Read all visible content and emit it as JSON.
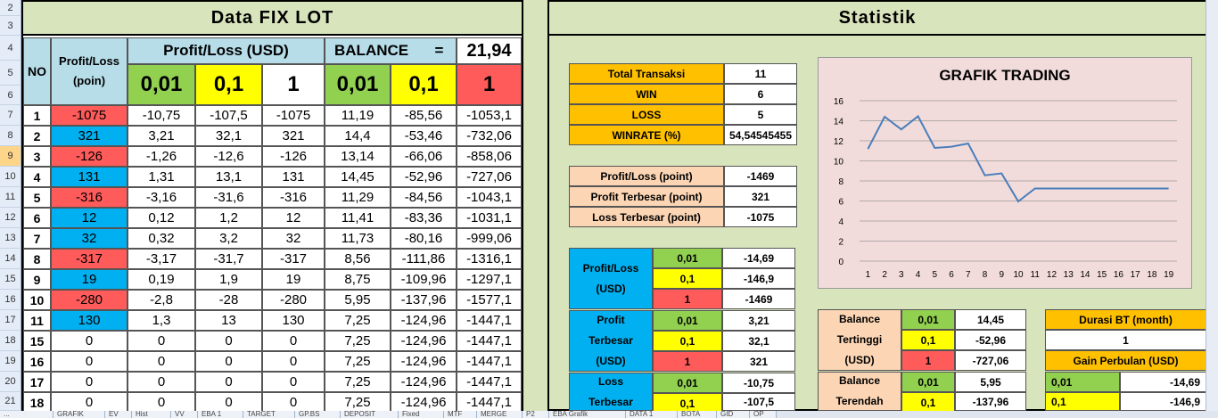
{
  "row_numbers": [
    "2",
    "3",
    "4",
    "5",
    "6",
    "7",
    "8",
    "9",
    "10",
    "11",
    "12",
    "13",
    "14",
    "15",
    "16",
    "17",
    "18",
    "19",
    "20",
    "21"
  ],
  "fix_lot": {
    "title": "Data FIX LOT",
    "no_label": "NO",
    "pl_poin_label": "Profit/Loss (poin)",
    "pl_usd_label": "Profit/Loss (USD)",
    "balance_label": "BALANCE",
    "equals": "=",
    "balance_value": "21,94",
    "lots": [
      "0,01",
      "0,1",
      "1",
      "0,01",
      "0,1",
      "1"
    ],
    "rows": [
      {
        "no": "1",
        "poin": "-1075",
        "p1": "-10,75",
        "p2": "-107,5",
        "p3": "-1075",
        "b1": "11,19",
        "b2": "-85,56",
        "b3": "-1053,1",
        "neg": true
      },
      {
        "no": "2",
        "poin": "321",
        "p1": "3,21",
        "p2": "32,1",
        "p3": "321",
        "b1": "14,4",
        "b2": "-53,46",
        "b3": "-732,06",
        "neg": false
      },
      {
        "no": "3",
        "poin": "-126",
        "p1": "-1,26",
        "p2": "-12,6",
        "p3": "-126",
        "b1": "13,14",
        "b2": "-66,06",
        "b3": "-858,06",
        "neg": true
      },
      {
        "no": "4",
        "poin": "131",
        "p1": "1,31",
        "p2": "13,1",
        "p3": "131",
        "b1": "14,45",
        "b2": "-52,96",
        "b3": "-727,06",
        "neg": false
      },
      {
        "no": "5",
        "poin": "-316",
        "p1": "-3,16",
        "p2": "-31,6",
        "p3": "-316",
        "b1": "11,29",
        "b2": "-84,56",
        "b3": "-1043,1",
        "neg": true
      },
      {
        "no": "6",
        "poin": "12",
        "p1": "0,12",
        "p2": "1,2",
        "p3": "12",
        "b1": "11,41",
        "b2": "-83,36",
        "b3": "-1031,1",
        "neg": false
      },
      {
        "no": "7",
        "poin": "32",
        "p1": "0,32",
        "p2": "3,2",
        "p3": "32",
        "b1": "11,73",
        "b2": "-80,16",
        "b3": "-999,06",
        "neg": false
      },
      {
        "no": "8",
        "poin": "-317",
        "p1": "-3,17",
        "p2": "-31,7",
        "p3": "-317",
        "b1": "8,56",
        "b2": "-111,86",
        "b3": "-1316,1",
        "neg": true
      },
      {
        "no": "9",
        "poin": "19",
        "p1": "0,19",
        "p2": "1,9",
        "p3": "19",
        "b1": "8,75",
        "b2": "-109,96",
        "b3": "-1297,1",
        "neg": false
      },
      {
        "no": "10",
        "poin": "-280",
        "p1": "-2,8",
        "p2": "-28",
        "p3": "-280",
        "b1": "5,95",
        "b2": "-137,96",
        "b3": "-1577,1",
        "neg": true
      },
      {
        "no": "11",
        "poin": "130",
        "p1": "1,3",
        "p2": "13",
        "p3": "130",
        "b1": "7,25",
        "b2": "-124,96",
        "b3": "-1447,1",
        "neg": false
      },
      {
        "no": "15",
        "poin": "0",
        "p1": "0",
        "p2": "0",
        "p3": "0",
        "b1": "7,25",
        "b2": "-124,96",
        "b3": "-1447,1",
        "neg": null
      },
      {
        "no": "16",
        "poin": "0",
        "p1": "0",
        "p2": "0",
        "p3": "0",
        "b1": "7,25",
        "b2": "-124,96",
        "b3": "-1447,1",
        "neg": null
      },
      {
        "no": "17",
        "poin": "0",
        "p1": "0",
        "p2": "0",
        "p3": "0",
        "b1": "7,25",
        "b2": "-124,96",
        "b3": "-1447,1",
        "neg": null
      },
      {
        "no": "18",
        "poin": "0",
        "p1": "0",
        "p2": "0",
        "p3": "0",
        "b1": "7,25",
        "b2": "-124,96",
        "b3": "-1447,1",
        "neg": null
      }
    ]
  },
  "statistik": {
    "title": "Statistik",
    "summary": [
      {
        "label": "Total Transaksi",
        "value": "11"
      },
      {
        "label": "WIN",
        "value": "6"
      },
      {
        "label": "LOSS",
        "value": "5"
      },
      {
        "label": "WINRATE (%)",
        "value": "54,54545455"
      }
    ],
    "points": [
      {
        "label": "Profit/Loss (point)",
        "value": "-1469"
      },
      {
        "label": "Profit Terbesar (point)",
        "value": "321"
      },
      {
        "label": "Loss Terbesar (point)",
        "value": "-1075"
      }
    ],
    "usd_groups": [
      {
        "lines": [
          "Profit/Loss",
          "(USD)"
        ],
        "rows": [
          {
            "lot": "0,01",
            "value": "-14,69"
          },
          {
            "lot": "0,1",
            "value": "-146,9"
          },
          {
            "lot": "1",
            "value": "-1469"
          }
        ]
      },
      {
        "lines": [
          "Profit",
          "Terbesar",
          "(USD)"
        ],
        "rows": [
          {
            "lot": "0,01",
            "value": "3,21"
          },
          {
            "lot": "0,1",
            "value": "32,1"
          },
          {
            "lot": "1",
            "value": "321"
          }
        ]
      },
      {
        "lines": [
          "Loss",
          "Terbesar"
        ],
        "rows": [
          {
            "lot": "0,01",
            "value": "-10,75"
          },
          {
            "lot": "0,1",
            "value": "-107,5"
          }
        ]
      }
    ],
    "balance_high": {
      "lines": [
        "Balance",
        "Tertinggi",
        "(USD)"
      ],
      "rows": [
        {
          "lot": "0,01",
          "value": "14,45"
        },
        {
          "lot": "0,1",
          "value": "-52,96"
        },
        {
          "lot": "1",
          "value": "-727,06"
        }
      ]
    },
    "balance_low": {
      "lines": [
        "Balance",
        "Terendah"
      ],
      "rows": [
        {
          "lot": "0,01",
          "value": "5,95"
        },
        {
          "lot": "0,1",
          "value": "-137,96"
        }
      ]
    },
    "durasi": {
      "label": "Durasi BT (month)",
      "value": "1"
    },
    "gain": {
      "label": "Gain Perbulan (USD)",
      "rows": [
        {
          "lot": "0,01",
          "value": "-14,69"
        },
        {
          "lot": "0,1",
          "value": "-146,9"
        }
      ]
    }
  },
  "chart_data": {
    "type": "line",
    "title": "GRAFIK TRADING",
    "categories": [
      "1",
      "2",
      "3",
      "4",
      "5",
      "6",
      "7",
      "8",
      "9",
      "10",
      "11",
      "12",
      "13",
      "14",
      "15",
      "16",
      "17",
      "18",
      "19"
    ],
    "series": [
      {
        "values": [
          11.19,
          14.4,
          13.14,
          14.45,
          11.29,
          11.41,
          11.73,
          8.56,
          8.75,
          5.95,
          7.25,
          7.25,
          7.25,
          7.25,
          7.25,
          7.25,
          7.25,
          7.25,
          7.25
        ]
      }
    ],
    "yticks": [
      "0",
      "2",
      "4",
      "6",
      "8",
      "10",
      "12",
      "14",
      "16"
    ],
    "ylim": [
      0,
      16
    ],
    "grid": true,
    "colors": {
      "line": "#4a7ebb",
      "plot_bg": "#f2dcdb"
    }
  },
  "sheet_tabs": [
    "...",
    "GRAFIK",
    "EV",
    "Hist",
    "VV",
    "EBA 1",
    "TARGET",
    "GP.BS",
    "DEPOSIT",
    "Fixed",
    "MTF",
    "MERGE",
    "P2",
    "EBA Grafik",
    "DATA 1",
    "BOTA",
    "GID",
    "OP"
  ],
  "colors": {
    "green": "#92d050",
    "yellow": "#ffff00",
    "red": "#ff5b5b",
    "blue": "#00b0f0",
    "header_blue": "#b7dde8",
    "orange": "#ffc000",
    "peach": "#fcd5b4",
    "sheet_bg": "#d8e4bc"
  }
}
